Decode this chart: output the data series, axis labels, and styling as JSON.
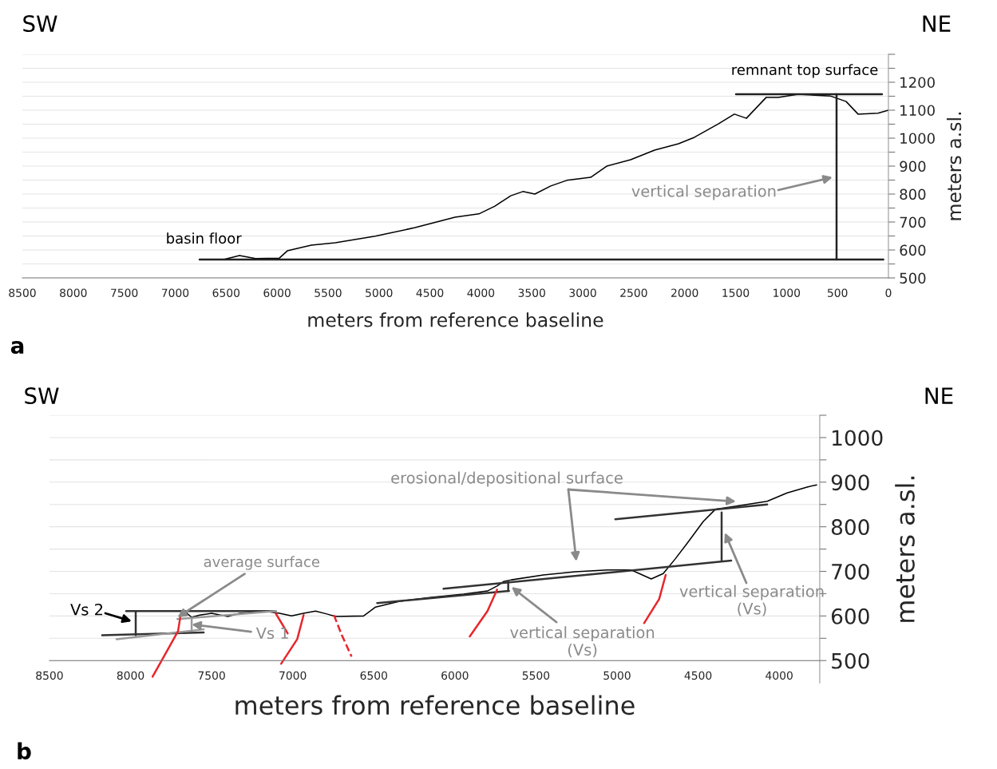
{
  "chart_data": [
    {
      "type": "line",
      "xlabel": "meters from reference baseline",
      "ylabel": "meters a.sl.",
      "xlim": [
        8500,
        0
      ],
      "ylim": [
        500,
        1300
      ],
      "xticks": [
        8500,
        8000,
        7500,
        7000,
        6500,
        6000,
        5500,
        5000,
        4500,
        4000,
        3500,
        3000,
        2500,
        2000,
        1500,
        1000,
        500,
        0
      ],
      "yticks": [
        500,
        {
          "value": 550,
          "label": null
        },
        600,
        {
          "value": 650,
          "label": null
        },
        700,
        {
          "value": 750,
          "label": null
        },
        800,
        {
          "value": 850,
          "label": null
        },
        900,
        {
          "value": 950,
          "label": null
        },
        1000,
        {
          "value": 1050,
          "label": null
        },
        1100,
        {
          "value": 1150,
          "label": null
        },
        1200,
        {
          "value": 1250,
          "label": null
        },
        {
          "value": 1300,
          "label": null
        }
      ],
      "grid": "y",
      "legend": false,
      "marker": "none",
      "series": [
        {
          "color": "#000000",
          "x": [
            6525,
            6369,
            6212,
            5977,
            5899,
            5664,
            5429,
            5037,
            4646,
            4254,
            4019,
            3862,
            3706,
            3588,
            3470,
            3314,
            3157,
            2922,
            2765,
            2530,
            2295,
            2060,
            1904,
            1669,
            1512,
            1394,
            1199,
            1081,
            885,
            572,
            415,
            298,
            102,
            0
          ],
          "values": [
            566,
            580,
            569,
            571,
            597,
            617,
            626,
            649,
            680,
            717,
            729,
            757,
            794,
            809,
            800,
            829,
            849,
            860,
            900,
            923,
            957,
            980,
            1003,
            1051,
            1086,
            1071,
            1146,
            1146,
            1157,
            1151,
            1131,
            1086,
            1089,
            1100
          ]
        },
        {
          "color": "#222222",
          "x": [
            6760,
            50
          ],
          "values": [
            566,
            566
          ]
        },
        {
          "color": "#222222",
          "x": [
            1496,
            63
          ],
          "values": [
            1157,
            1157
          ]
        },
        {
          "color": "#222222",
          "x": [
            509,
            509
          ],
          "values": [
            566,
            1157
          ]
        }
      ],
      "annotations": [
        "SW",
        "NE",
        "a",
        {
          "text": "basin floor",
          "x": 6720,
          "y": 566
        },
        {
          "text": "remnant top surface",
          "x": 822,
          "y": 1157
        },
        "vertical separation"
      ]
    },
    {
      "type": "line",
      "xlabel": "meters from reference baseline",
      "ylabel": "meters a.sl.",
      "xlim": [
        8500,
        3750
      ],
      "ylim": [
        450,
        1050
      ],
      "xticks": [
        8500,
        8000,
        7500,
        7000,
        6500,
        6000,
        5500,
        5000,
        4500,
        4000
      ],
      "yticks": [
        500,
        {
          "value": 550,
          "label": null
        },
        600,
        {
          "value": 650,
          "label": null
        },
        700,
        {
          "value": 750,
          "label": null
        },
        800,
        {
          "value": 850,
          "label": null
        },
        900,
        {
          "value": 950,
          "label": null
        },
        1000,
        {
          "value": 1050,
          "label": null
        }
      ],
      "grid": "y",
      "legend": false,
      "marker": "none",
      "series": [
        {
          "color": "#000000",
          "x": [
            7697,
            7662,
            7623,
            7573,
            7500,
            7401,
            7327,
            7179,
            7081,
            7007,
            6933,
            6859,
            6785,
            6736,
            6563,
            6489,
            6341,
            6144,
            5947,
            5799,
            5740,
            5700,
            5651,
            5454,
            5257,
            5060,
            4912,
            4863,
            4789,
            4715,
            4641,
            4567,
            4468,
            4394,
            4271,
            4074,
            3951,
            3828,
            3769
          ],
          "values": [
            600,
            609,
            597,
            602,
            606,
            599,
            606,
            611,
            606,
            600,
            606,
            611,
            604,
            599,
            600,
            620,
            633,
            642,
            649,
            656,
            667,
            677,
            681,
            692,
            699,
            703,
            703,
            695,
            683,
            695,
            728,
            763,
            812,
            839,
            846,
            857,
            876,
            889,
            894
          ]
        },
        {
          "color": "#333333",
          "x": [
            5011,
            4074
          ],
          "values": [
            817,
            850
          ]
        },
        {
          "color": "#333333",
          "x": [
            6070,
            4296
          ],
          "values": [
            661,
            724
          ]
        },
        {
          "color": "#333333",
          "x": [
            6479,
            5666
          ],
          "values": [
            629,
            656
          ]
        },
        {
          "color": "#333333",
          "x": [
            4355,
            4355
          ],
          "values": [
            724,
            832
          ]
        },
        {
          "color": "#333333",
          "x": [
            5671,
            5671
          ],
          "values": [
            656,
            677
          ]
        },
        {
          "color": "#333333",
          "x": [
            8027,
            7105
          ],
          "values": [
            611,
            611
          ]
        },
        {
          "color": "#333333",
          "x": [
            8175,
            7549
          ],
          "values": [
            557,
            563
          ]
        },
        {
          "color": "#333333",
          "x": [
            7968,
            7968
          ],
          "values": [
            557,
            611
          ]
        },
        {
          "color": "#999999",
          "x": [
            7711,
            7105
          ],
          "values": [
            593,
            611
          ]
        },
        {
          "color": "#999999",
          "x": [
            8086,
            7549
          ],
          "values": [
            548,
            570
          ]
        },
        {
          "color": "#999999",
          "x": [
            7623,
            7623
          ],
          "values": [
            570,
            593
          ]
        },
        {
          "color": "#e8262b",
          "x": [
            7864,
            7790,
            7707,
            7692
          ],
          "values": [
            464,
            512,
            566,
            600
          ]
        },
        {
          "color": "#e8262b",
          "x": [
            7071,
            6972,
            6933
          ],
          "values": [
            493,
            548,
            602
          ]
        },
        {
          "color": "#e8262b",
          "x": [
            7105,
            7031
          ],
          "values": [
            606,
            561
          ]
        },
        {
          "color": "#e8262b",
          "line_style": "dashed",
          "x": [
            6746,
            6697,
            6637
          ],
          "values": [
            602,
            557,
            509
          ]
        },
        {
          "color": "#e8262b",
          "x": [
            5908,
            5799,
            5740
          ],
          "values": [
            554,
            611,
            659
          ]
        },
        {
          "color": "#e8262b",
          "x": [
            4833,
            4740,
            4700
          ],
          "values": [
            584,
            638,
            692
          ]
        }
      ],
      "annotations": [
        "SW",
        "NE",
        "b",
        "erosional/depositional surface",
        {
          "text": "average surface",
          "x": 7711,
          "y": 597
        },
        "Vs 2",
        {
          "text": "Vs 1",
          "x": 7623,
          "y": 581
        },
        {
          "text": "vertical separation\n(Vs)",
          "x": 5651,
          "y": 665
        },
        "vertical separation\n(Vs)"
      ]
    }
  ]
}
